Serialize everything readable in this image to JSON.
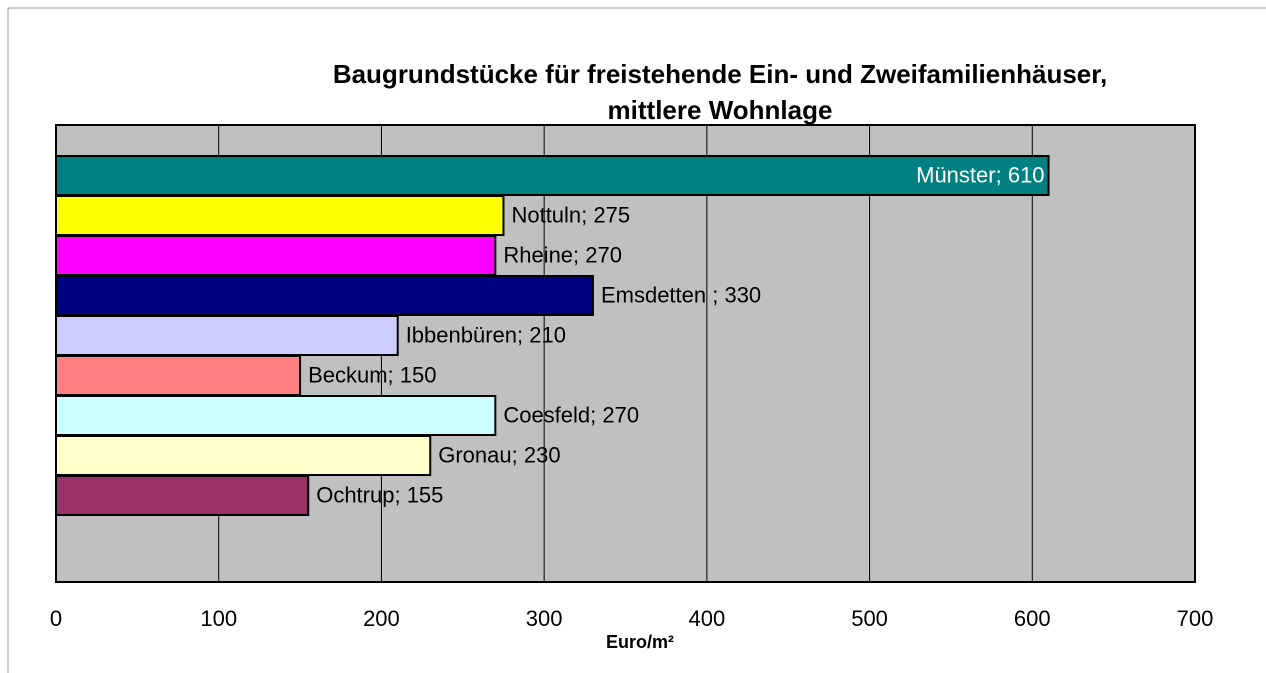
{
  "chart_data": {
    "type": "bar",
    "orientation": "horizontal",
    "title": [
      "Baugrundstücke für freistehende Ein- und Zweifamilienhäuser,",
      "mittlere Wohnlage"
    ],
    "xlabel": "Euro/m²",
    "categories": [
      "Münster",
      "Nottuln",
      "Rheine",
      "Emsdetten",
      "Ibbenbüren",
      "Beckum",
      "Coesfeld",
      "Gronau",
      "Ochtrup"
    ],
    "values": [
      610,
      275,
      270,
      330,
      210,
      150,
      270,
      230,
      155
    ],
    "value_labels": [
      "; 610",
      "; 275",
      "; 270",
      " ; 330",
      "; 210",
      "; 150",
      "; 270",
      "; 230",
      "; 155"
    ],
    "colors": [
      "#008080",
      "#ffff00",
      "#ff00ff",
      "#000080",
      "#ccccff",
      "#ff8080",
      "#ccffff",
      "#ffffcc",
      "#993366"
    ],
    "label_colors": [
      "#ffffff",
      "#000000",
      "#000000",
      "#000000",
      "#000000",
      "#000000",
      "#000000",
      "#000000",
      "#000000"
    ],
    "xlim": [
      0,
      700
    ],
    "xticks": [
      0,
      100,
      200,
      300,
      400,
      500,
      600,
      700
    ],
    "grid": true,
    "background": "#c0c0c0"
  }
}
